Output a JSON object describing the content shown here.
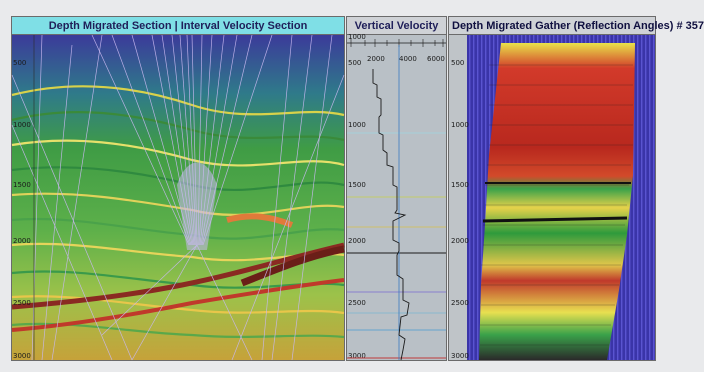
{
  "panels": {
    "section": {
      "title": "Depth Migrated Section | Interval Velocity Section"
    },
    "velocity": {
      "title": "Vertical Velocity"
    },
    "gather": {
      "title": "Depth Migrated Gather (Reflection Angles) # 357"
    }
  },
  "depth_ticks": [
    "500",
    "1000",
    "1500",
    "2000",
    "2500",
    "3000"
  ],
  "velocity_ticks": [
    "1000",
    "2000",
    "4000",
    "6000"
  ],
  "colors": {
    "title_cyan": "#7fdfe6",
    "panel_border": "#6b6b6b",
    "seismic_red": "#c0392b",
    "seismic_green": "#2e9a3c",
    "seismic_yellow": "#e8e050",
    "seismic_blue": "#3a3ab0"
  }
}
